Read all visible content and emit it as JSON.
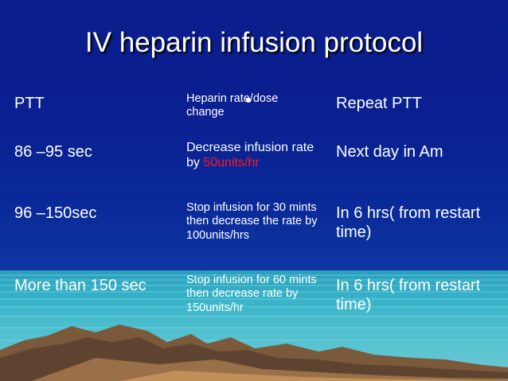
{
  "title": "IV heparin infusion protocol",
  "rows": [
    {
      "ptt": "PTT",
      "change": "Heparin rate/dose change",
      "repeat": "Repeat PTT"
    },
    {
      "ptt": "86 –95 sec",
      "change_prefix": "Decrease infusion rate by ",
      "change_highlight": "50units/hr",
      "repeat": "Next day in Am"
    },
    {
      "ptt": "96 –150sec",
      "change": "Stop infusion for 30 mints then decrease the rate by 100units/hrs",
      "repeat": "In 6 hrs( from restart time)"
    },
    {
      "ptt": "More than 150 sec",
      "change": "Stop infusion for 60 mints then decrease rate by 150units/hr",
      "repeat": "In 6 hrs( from restart time)"
    }
  ],
  "colors": {
    "highlight": "#ff1a1a",
    "background": "#0b1d8c",
    "water": "#37b2c8"
  }
}
